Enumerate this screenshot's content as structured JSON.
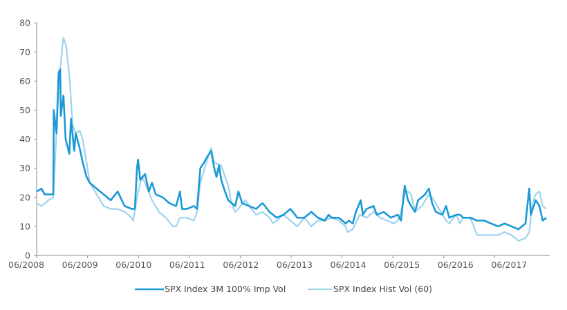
{
  "chart_data": {
    "type": "line",
    "title": "",
    "xlabel": "",
    "ylabel": "",
    "ylim": [
      0,
      80
    ],
    "yticks": [
      0,
      10,
      20,
      30,
      40,
      50,
      60,
      70,
      80
    ],
    "xlim": [
      2008.42,
      2017.95
    ],
    "xtick_labels": [
      {
        "t": 2008.42,
        "label": "06/2008"
      },
      {
        "t": 2009.42,
        "label": "06/2009"
      },
      {
        "t": 2010.42,
        "label": "06/2010"
      },
      {
        "t": 2011.42,
        "label": "06/2011"
      },
      {
        "t": 2012.42,
        "label": "06/2012"
      },
      {
        "t": 2013.42,
        "label": "06/2013"
      },
      {
        "t": 2014.42,
        "label": "06/2014"
      },
      {
        "t": 2015.42,
        "label": "06/2015"
      },
      {
        "t": 2016.42,
        "label": "06/2016"
      },
      {
        "t": 2017.42,
        "label": "06/2017"
      }
    ],
    "grid": false,
    "legend_position": "bottom",
    "series": [
      {
        "name": "SPX Index Hist Vol (60)",
        "color": "#9dd3ec",
        "x": [
          2008.42,
          2008.51,
          2008.64,
          2008.73,
          2008.77,
          2008.83,
          2008.9,
          2008.92,
          2008.97,
          2009.03,
          2009.09,
          2009.15,
          2009.22,
          2009.28,
          2009.35,
          2009.41,
          2009.54,
          2009.67,
          2009.8,
          2009.93,
          2010.06,
          2010.19,
          2010.22,
          2010.31,
          2010.38,
          2010.44,
          2010.57,
          2010.7,
          2010.83,
          2010.96,
          2011.02,
          2011.09,
          2011.22,
          2011.35,
          2011.41,
          2011.47,
          2011.6,
          2011.67,
          2011.73,
          2011.86,
          2011.99,
          2012.05,
          2012.12,
          2012.18,
          2012.31,
          2012.38,
          2012.51,
          2012.63,
          2012.76,
          2012.83,
          2012.89,
          2013.02,
          2013.15,
          2013.28,
          2013.41,
          2013.54,
          2013.66,
          2013.79,
          2013.92,
          2014.05,
          2014.18,
          2014.21,
          2014.31,
          2014.44,
          2014.57,
          2014.7,
          2014.82,
          2014.95,
          2015.08,
          2015.15,
          2015.21,
          2015.28,
          2015.34,
          2015.4,
          2015.47,
          2015.6,
          2015.73,
          2015.79,
          2015.92,
          2016.05,
          2016.11,
          2016.24,
          2016.31,
          2016.37,
          2016.5,
          2016.63,
          2016.76,
          2016.89,
          2017.02,
          2017.14,
          2017.27,
          2017.34,
          2017.4,
          2017.53,
          2017.6,
          2017.66,
          2017.72,
          2017.79,
          2017.85,
          2017.92
        ],
        "values": [
          18,
          17,
          19,
          20,
          35,
          58,
          72,
          75,
          72,
          62,
          45,
          42,
          43,
          40,
          32,
          25,
          21,
          17,
          16,
          16,
          15,
          13,
          12,
          22,
          27,
          25,
          19,
          15,
          13,
          10,
          10,
          13,
          13,
          12,
          15,
          25,
          33,
          37,
          32,
          31,
          24,
          18,
          15,
          16,
          19,
          17,
          14,
          15,
          13,
          11,
          12,
          14,
          12,
          10,
          13,
          10,
          12,
          12,
          13,
          12,
          10,
          8,
          9,
          14,
          13,
          15,
          13,
          12,
          11,
          12,
          15,
          21,
          22,
          21,
          15,
          17,
          21,
          20,
          16,
          12,
          11,
          14,
          11,
          13,
          13,
          7,
          7,
          7,
          7,
          8,
          7,
          6,
          5,
          6,
          8,
          18,
          21,
          22,
          17,
          16
        ]
      },
      {
        "name": "SPX Index 3M 100% Imp Vol",
        "color": "#1b98d5",
        "x": [
          2008.42,
          2008.51,
          2008.57,
          2008.64,
          2008.73,
          2008.74,
          2008.79,
          2008.83,
          2008.86,
          2008.87,
          2008.92,
          2008.96,
          2009.03,
          2009.06,
          2009.12,
          2009.15,
          2009.22,
          2009.28,
          2009.35,
          2009.41,
          2009.54,
          2009.67,
          2009.8,
          2009.93,
          2010.06,
          2010.19,
          2010.25,
          2010.29,
          2010.31,
          2010.35,
          2010.44,
          2010.51,
          2010.57,
          2010.64,
          2010.77,
          2010.89,
          2011.02,
          2011.09,
          2011.13,
          2011.22,
          2011.35,
          2011.41,
          2011.47,
          2011.54,
          2011.6,
          2011.67,
          2011.73,
          2011.77,
          2011.82,
          2011.86,
          2011.93,
          2011.99,
          2012.12,
          2012.18,
          2012.25,
          2012.38,
          2012.51,
          2012.63,
          2012.76,
          2012.89,
          2013.02,
          2013.15,
          2013.28,
          2013.41,
          2013.54,
          2013.66,
          2013.79,
          2013.86,
          2013.92,
          2014.05,
          2014.18,
          2014.24,
          2014.31,
          2014.37,
          2014.46,
          2014.5,
          2014.57,
          2014.7,
          2014.76,
          2014.89,
          2015.02,
          2015.15,
          2015.21,
          2015.28,
          2015.34,
          2015.4,
          2015.47,
          2015.53,
          2015.66,
          2015.73,
          2015.79,
          2015.86,
          2015.98,
          2016.05,
          2016.11,
          2016.24,
          2016.31,
          2016.37,
          2016.5,
          2016.63,
          2016.76,
          2016.89,
          2017.02,
          2017.14,
          2017.27,
          2017.4,
          2017.53,
          2017.6,
          2017.63,
          2017.72,
          2017.79,
          2017.85,
          2017.92
        ],
        "values": [
          22,
          23,
          21,
          21,
          21,
          50,
          42,
          63,
          64,
          48,
          55,
          40,
          35,
          47,
          36,
          42,
          37,
          32,
          27,
          25,
          23,
          21,
          19,
          22,
          17,
          16,
          16,
          30,
          33,
          26,
          28,
          22,
          25,
          21,
          20,
          18,
          17,
          22,
          16,
          16,
          17,
          16,
          30,
          32,
          34,
          36,
          30,
          27,
          31,
          26,
          22,
          19,
          17,
          22,
          18,
          17,
          16,
          18,
          15,
          13,
          14,
          16,
          13,
          13,
          15,
          13,
          12,
          14,
          13,
          13,
          11,
          12,
          11,
          15,
          19,
          14,
          16,
          17,
          14,
          15,
          13,
          14,
          12,
          24,
          19,
          17,
          15,
          19,
          21,
          23,
          18,
          15,
          14,
          17,
          13,
          14,
          14,
          13,
          13,
          12,
          12,
          11,
          10,
          11,
          10,
          9,
          11,
          23,
          14,
          19,
          17,
          12,
          13
        ]
      }
    ]
  }
}
